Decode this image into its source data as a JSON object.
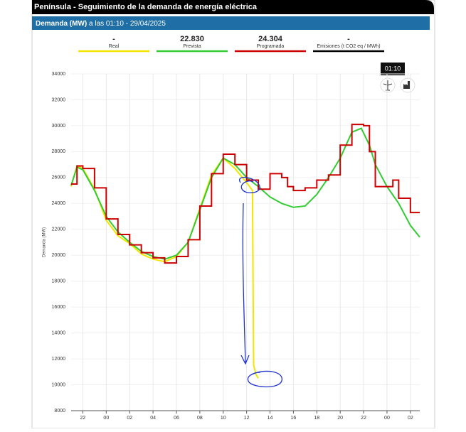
{
  "header": {
    "title": "Península  -  Seguimiento de la demanda de energía eléctrica"
  },
  "subheader": {
    "label": "Demanda (MW)",
    "time": "a las 01:10 - 29/04/2025"
  },
  "tooltip": "01:10",
  "chart_data": {
    "type": "line",
    "ylabel": "Demanda (MW)",
    "xlim": [
      21,
      50.8
    ],
    "xticks": [
      {
        "value": 22,
        "label": "22"
      },
      {
        "value": 24,
        "label": "00"
      },
      {
        "value": 26,
        "label": "02"
      },
      {
        "value": 28,
        "label": "04"
      },
      {
        "value": 30,
        "label": "06"
      },
      {
        "value": 32,
        "label": "08"
      },
      {
        "value": 34,
        "label": "10"
      },
      {
        "value": 36,
        "label": "12"
      },
      {
        "value": 38,
        "label": "14"
      },
      {
        "value": 40,
        "label": "16"
      },
      {
        "value": 42,
        "label": "18"
      },
      {
        "value": 44,
        "label": "20"
      },
      {
        "value": 46,
        "label": "22"
      },
      {
        "value": 48,
        "label": "00"
      },
      {
        "value": 50,
        "label": "02"
      }
    ],
    "ylim": [
      8000,
      34000
    ],
    "yticks": [
      8000,
      10000,
      12000,
      14000,
      16000,
      18000,
      20000,
      22000,
      24000,
      26000,
      28000,
      30000,
      32000,
      34000
    ],
    "grid": true,
    "series": [
      {
        "name": "Real",
        "legend_value": "-",
        "color": "#f2e600",
        "step": false,
        "x": [
          21,
          21.5,
          22,
          23,
          24,
          25,
          26,
          27,
          28,
          29,
          30,
          31,
          32,
          33,
          34,
          35,
          36,
          36.5,
          36.6,
          36.8,
          37
        ],
        "values": [
          25300,
          26900,
          26700,
          25100,
          22700,
          21500,
          20900,
          20100,
          19700,
          19500,
          19900,
          21000,
          23600,
          26200,
          27500,
          26700,
          25600,
          25000,
          11500,
          10800,
          10500
        ]
      },
      {
        "name": "Prevista",
        "legend_value": "22.830",
        "color": "#33cc33",
        "step": false,
        "x": [
          21,
          21.5,
          22,
          23,
          24,
          25,
          26,
          27,
          28,
          29,
          30,
          31,
          32,
          33,
          34,
          35,
          36,
          37,
          38,
          39,
          40,
          41,
          42,
          43,
          44,
          45,
          45.8,
          46.5,
          47,
          48,
          49,
          50,
          50.8
        ],
        "values": [
          25400,
          26800,
          26600,
          25000,
          23000,
          21800,
          21000,
          20300,
          19900,
          19700,
          20000,
          21000,
          23500,
          26000,
          27500,
          27000,
          26000,
          25300,
          24500,
          24000,
          23700,
          23800,
          24700,
          26000,
          27500,
          29500,
          29800,
          28500,
          27000,
          25300,
          24000,
          22300,
          21400
        ]
      },
      {
        "name": "Programada",
        "legend_value": "24.304",
        "color": "#cc0000",
        "step": true,
        "x": [
          21,
          21.5,
          22,
          23,
          24,
          25,
          26,
          27,
          28,
          29,
          30,
          31,
          32,
          33,
          34,
          35,
          36,
          37,
          38,
          39,
          39.5,
          40,
          41,
          42,
          43,
          44,
          45,
          46,
          46.5,
          47,
          48,
          48.5,
          49,
          50,
          50.8
        ],
        "values": [
          25500,
          26900,
          26700,
          25200,
          22800,
          21600,
          20800,
          20200,
          19800,
          19400,
          19900,
          21200,
          23800,
          26300,
          27800,
          27000,
          25800,
          25100,
          26300,
          26000,
          25300,
          25000,
          25200,
          25800,
          26200,
          28500,
          30100,
          30000,
          28000,
          25300,
          25300,
          25800,
          24400,
          23300,
          23300
        ]
      },
      {
        "name": "Emisiones (t CO2 eq / MWh)",
        "legend_value": "-",
        "color": "#000000",
        "step": false,
        "x": [],
        "values": []
      }
    ]
  }
}
